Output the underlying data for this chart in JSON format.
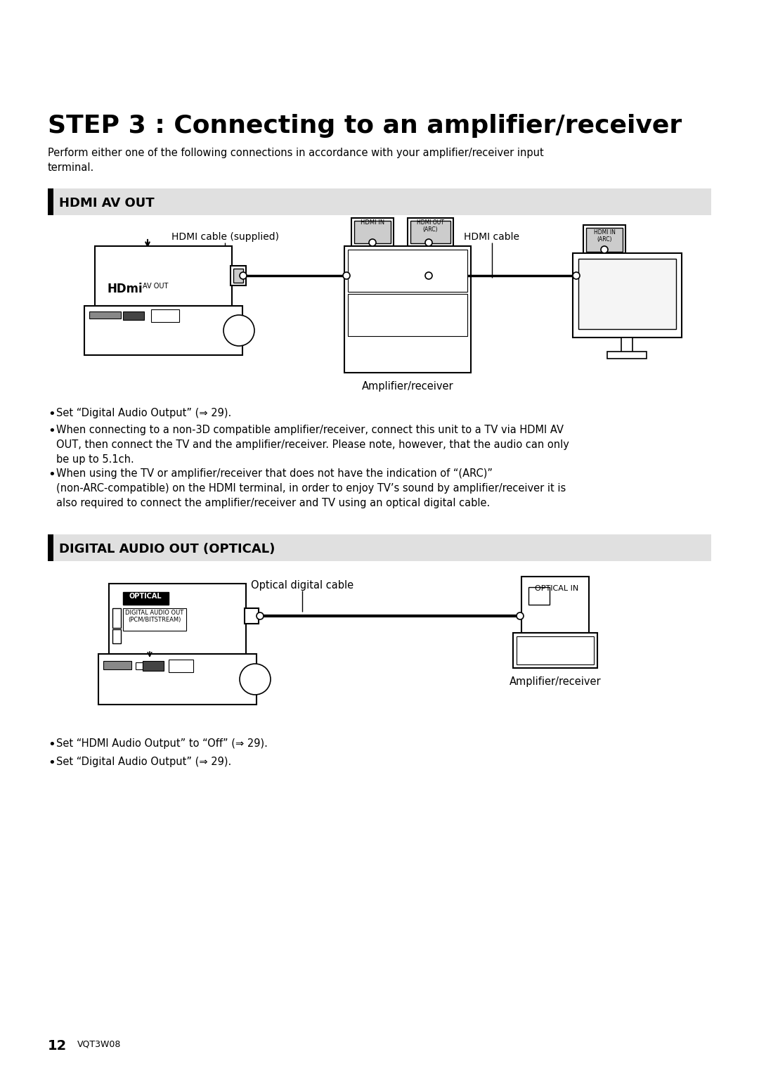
{
  "title": "STEP 3 : Connecting to an amplifier/receiver",
  "subtitle": "Perform either one of the following connections in accordance with your amplifier/receiver input\nterminal.",
  "section1_title": "HDMI AV OUT",
  "section2_title": "DIGITAL AUDIO OUT (OPTICAL)",
  "hdmi_label1": "HDMI cable (supplied)",
  "hdmi_label2": "HDMI cable",
  "hdmi_sublabel": "Amplifier/receiver",
  "optical_cable_label": "Optical digital cable",
  "optical_sublabel": "Amplifier/receiver",
  "bullet1_s1": "Set “Digital Audio Output” (⇒ 29).",
  "bullet2_s1": "When connecting to a non-3D compatible amplifier/receiver, connect this unit to a TV via HDMI AV\nOUT, then connect the TV and the amplifier/receiver. Please note, however, that the audio can only\nbe up to 5.1ch.",
  "bullet3_s1": "When using the TV or amplifier/receiver that does not have the indication of “(ARC)”\n(non-ARC-compatible) on the HDMI terminal, in order to enjoy TV’s sound by amplifier/receiver it is\nalso required to connect the amplifier/receiver and TV using an optical digital cable.",
  "bullet1_s2": "Set “HDMI Audio Output” to “Off” (⇒ 29).",
  "bullet2_s2": "Set “Digital Audio Output” (⇒ 29).",
  "page_num": "12",
  "page_code": "VQT3W08",
  "bg_color": "#ffffff",
  "section_bg": "#e0e0e0",
  "section_bar_color": "#000000",
  "text_color": "#000000"
}
